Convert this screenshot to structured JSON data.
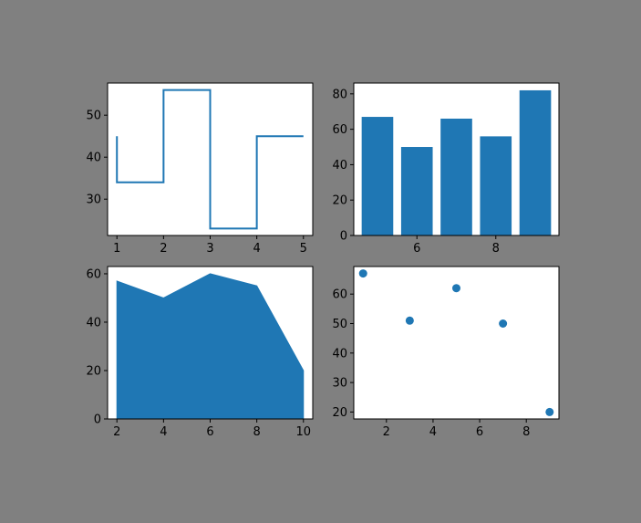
{
  "figure": {
    "background": "#808080",
    "axes_face": "#ffffff",
    "series_color": "#1f77b4"
  },
  "chart_data": [
    {
      "type": "line",
      "step": "pre",
      "x": [
        1,
        2,
        3,
        4,
        5
      ],
      "y": [
        45,
        34,
        56,
        23,
        45
      ],
      "xlim": [
        0.8,
        5.2
      ],
      "ylim": [
        21.35,
        57.65
      ],
      "xticks": [
        1,
        2,
        3,
        4,
        5
      ],
      "yticks": [
        30,
        40,
        50
      ],
      "grid": false
    },
    {
      "type": "bar",
      "x": [
        5,
        6,
        7,
        8,
        9
      ],
      "values": [
        67,
        50,
        66,
        56,
        82
      ],
      "xlim": [
        4.4,
        9.6
      ],
      "ylim": [
        0,
        86.1
      ],
      "xticks": [
        6,
        8
      ],
      "yticks": [
        0,
        20,
        40,
        60,
        80
      ],
      "grid": false
    },
    {
      "type": "area",
      "x": [
        2,
        4,
        6,
        8,
        10
      ],
      "values": [
        57,
        50,
        60,
        55,
        20
      ],
      "xlim": [
        1.6,
        10.4
      ],
      "ylim": [
        0,
        63
      ],
      "xticks": [
        2,
        4,
        6,
        8,
        10
      ],
      "yticks": [
        0,
        20,
        40,
        60
      ],
      "grid": false
    },
    {
      "type": "scatter",
      "x": [
        1,
        3,
        5,
        7,
        9
      ],
      "y": [
        67,
        51,
        62,
        50,
        20
      ],
      "xlim": [
        0.6,
        9.4
      ],
      "ylim": [
        17.65,
        69.35
      ],
      "xticks": [
        2,
        4,
        6,
        8
      ],
      "yticks": [
        20,
        30,
        40,
        50,
        60
      ],
      "grid": false
    }
  ]
}
